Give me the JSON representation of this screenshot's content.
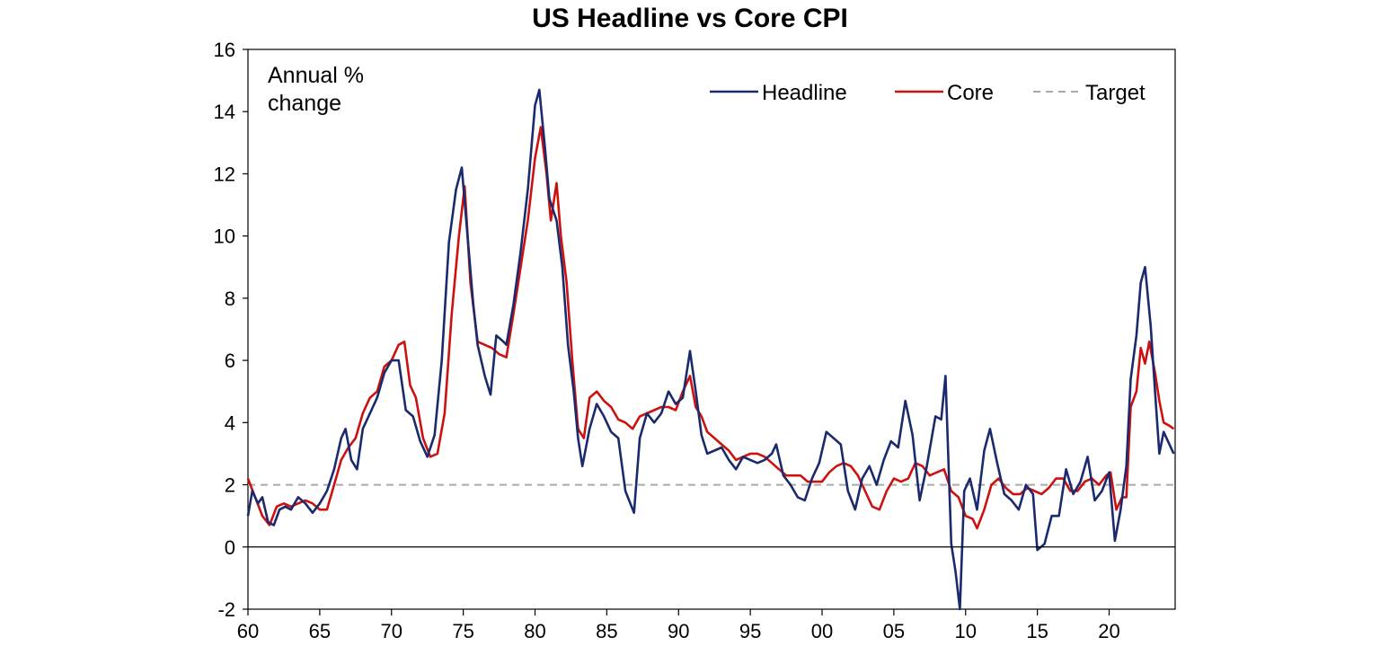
{
  "chart_data": {
    "type": "line",
    "title": "US Headline vs Core CPI",
    "annotation": [
      "Annual %",
      "change"
    ],
    "xlabel": "",
    "ylabel": "",
    "xlim": [
      1960,
      2024.6
    ],
    "ylim": [
      -2,
      16
    ],
    "x_ticks": [
      1960,
      1965,
      1970,
      1975,
      1980,
      1985,
      1990,
      1995,
      2000,
      2005,
      2010,
      2015,
      2020
    ],
    "x_tick_labels": [
      "60",
      "65",
      "70",
      "75",
      "80",
      "85",
      "90",
      "95",
      "00",
      "05",
      "10",
      "15",
      "20"
    ],
    "y_ticks": [
      -2,
      0,
      2,
      4,
      6,
      8,
      10,
      12,
      14,
      16
    ],
    "y_tick_labels": [
      "-2",
      "0",
      "2",
      "4",
      "6",
      "8",
      "10",
      "12",
      "14",
      "16"
    ],
    "grid": false,
    "legend_position": "top-right",
    "series": [
      {
        "name": "Headline",
        "color": "#1a2a6c",
        "style": "solid",
        "points": [
          [
            1960.0,
            1.0
          ],
          [
            1960.3,
            1.8
          ],
          [
            1960.7,
            1.4
          ],
          [
            1961.0,
            1.6
          ],
          [
            1961.4,
            0.8
          ],
          [
            1961.8,
            0.7
          ],
          [
            1962.2,
            1.2
          ],
          [
            1962.6,
            1.3
          ],
          [
            1963.0,
            1.2
          ],
          [
            1963.5,
            1.6
          ],
          [
            1964.0,
            1.4
          ],
          [
            1964.5,
            1.1
          ],
          [
            1965.0,
            1.4
          ],
          [
            1965.5,
            1.8
          ],
          [
            1966.0,
            2.5
          ],
          [
            1966.5,
            3.5
          ],
          [
            1966.8,
            3.8
          ],
          [
            1967.2,
            2.8
          ],
          [
            1967.6,
            2.5
          ],
          [
            1968.0,
            3.8
          ],
          [
            1968.5,
            4.3
          ],
          [
            1969.0,
            4.8
          ],
          [
            1969.5,
            5.6
          ],
          [
            1970.0,
            6.0
          ],
          [
            1970.5,
            6.0
          ],
          [
            1971.0,
            4.4
          ],
          [
            1971.5,
            4.2
          ],
          [
            1972.0,
            3.4
          ],
          [
            1972.5,
            2.9
          ],
          [
            1973.0,
            3.6
          ],
          [
            1973.5,
            6.0
          ],
          [
            1974.0,
            9.8
          ],
          [
            1974.5,
            11.5
          ],
          [
            1974.9,
            12.2
          ],
          [
            1975.3,
            10.0
          ],
          [
            1975.7,
            7.8
          ],
          [
            1976.0,
            6.5
          ],
          [
            1976.5,
            5.5
          ],
          [
            1976.9,
            4.9
          ],
          [
            1977.3,
            6.8
          ],
          [
            1977.8,
            6.6
          ],
          [
            1978.0,
            6.5
          ],
          [
            1978.5,
            7.8
          ],
          [
            1979.0,
            9.5
          ],
          [
            1979.5,
            11.5
          ],
          [
            1980.0,
            14.2
          ],
          [
            1980.3,
            14.7
          ],
          [
            1980.7,
            12.8
          ],
          [
            1981.0,
            11.2
          ],
          [
            1981.5,
            10.5
          ],
          [
            1981.9,
            9.0
          ],
          [
            1982.3,
            6.5
          ],
          [
            1982.7,
            5.0
          ],
          [
            1983.0,
            3.5
          ],
          [
            1983.3,
            2.6
          ],
          [
            1983.8,
            3.8
          ],
          [
            1984.3,
            4.6
          ],
          [
            1984.8,
            4.2
          ],
          [
            1985.3,
            3.7
          ],
          [
            1985.8,
            3.5
          ],
          [
            1986.3,
            1.8
          ],
          [
            1986.9,
            1.1
          ],
          [
            1987.3,
            3.5
          ],
          [
            1987.8,
            4.3
          ],
          [
            1988.3,
            4.0
          ],
          [
            1988.8,
            4.3
          ],
          [
            1989.3,
            5.0
          ],
          [
            1989.8,
            4.6
          ],
          [
            1990.3,
            4.8
          ],
          [
            1990.8,
            6.3
          ],
          [
            1991.2,
            5.0
          ],
          [
            1991.6,
            3.6
          ],
          [
            1992.0,
            3.0
          ],
          [
            1992.5,
            3.1
          ],
          [
            1993.0,
            3.2
          ],
          [
            1993.5,
            2.8
          ],
          [
            1994.0,
            2.5
          ],
          [
            1994.5,
            2.9
          ],
          [
            1995.0,
            2.8
          ],
          [
            1995.5,
            2.7
          ],
          [
            1996.0,
            2.8
          ],
          [
            1996.5,
            3.0
          ],
          [
            1996.8,
            3.3
          ],
          [
            1997.3,
            2.3
          ],
          [
            1997.8,
            2.0
          ],
          [
            1998.3,
            1.6
          ],
          [
            1998.8,
            1.5
          ],
          [
            1999.3,
            2.2
          ],
          [
            1999.8,
            2.7
          ],
          [
            2000.3,
            3.7
          ],
          [
            2000.8,
            3.5
          ],
          [
            2001.3,
            3.3
          ],
          [
            2001.8,
            1.8
          ],
          [
            2002.3,
            1.2
          ],
          [
            2002.8,
            2.2
          ],
          [
            2003.3,
            2.6
          ],
          [
            2003.8,
            2.0
          ],
          [
            2004.3,
            2.8
          ],
          [
            2004.8,
            3.4
          ],
          [
            2005.3,
            3.2
          ],
          [
            2005.8,
            4.7
          ],
          [
            2006.3,
            3.6
          ],
          [
            2006.8,
            1.5
          ],
          [
            2007.3,
            2.6
          ],
          [
            2007.9,
            4.2
          ],
          [
            2008.3,
            4.1
          ],
          [
            2008.6,
            5.5
          ],
          [
            2009.0,
            0.1
          ],
          [
            2009.3,
            -0.8
          ],
          [
            2009.6,
            -2.0
          ],
          [
            2009.9,
            1.8
          ],
          [
            2010.3,
            2.2
          ],
          [
            2010.8,
            1.2
          ],
          [
            2011.3,
            3.1
          ],
          [
            2011.7,
            3.8
          ],
          [
            2012.2,
            2.7
          ],
          [
            2012.7,
            1.7
          ],
          [
            2013.2,
            1.5
          ],
          [
            2013.7,
            1.2
          ],
          [
            2014.2,
            2.0
          ],
          [
            2014.7,
            1.7
          ],
          [
            2015.0,
            -0.1
          ],
          [
            2015.5,
            0.1
          ],
          [
            2016.0,
            1.0
          ],
          [
            2016.5,
            1.0
          ],
          [
            2017.0,
            2.5
          ],
          [
            2017.5,
            1.7
          ],
          [
            2018.0,
            2.1
          ],
          [
            2018.5,
            2.9
          ],
          [
            2019.0,
            1.5
          ],
          [
            2019.5,
            1.8
          ],
          [
            2020.0,
            2.4
          ],
          [
            2020.4,
            0.2
          ],
          [
            2020.8,
            1.2
          ],
          [
            2021.2,
            2.6
          ],
          [
            2021.5,
            5.4
          ],
          [
            2021.9,
            6.8
          ],
          [
            2022.2,
            8.5
          ],
          [
            2022.5,
            9.0
          ],
          [
            2022.9,
            7.1
          ],
          [
            2023.2,
            5.0
          ],
          [
            2023.5,
            3.0
          ],
          [
            2023.8,
            3.7
          ],
          [
            2024.2,
            3.3
          ],
          [
            2024.5,
            3.0
          ]
        ]
      },
      {
        "name": "Core",
        "color": "#cc1111",
        "style": "solid",
        "points": [
          [
            1960.0,
            2.2
          ],
          [
            1960.5,
            1.6
          ],
          [
            1961.0,
            1.0
          ],
          [
            1961.5,
            0.7
          ],
          [
            1962.0,
            1.3
          ],
          [
            1962.5,
            1.4
          ],
          [
            1963.0,
            1.3
          ],
          [
            1963.5,
            1.4
          ],
          [
            1964.0,
            1.5
          ],
          [
            1964.5,
            1.4
          ],
          [
            1965.0,
            1.2
          ],
          [
            1965.5,
            1.2
          ],
          [
            1966.0,
            2.0
          ],
          [
            1966.5,
            2.8
          ],
          [
            1967.0,
            3.2
          ],
          [
            1967.5,
            3.5
          ],
          [
            1968.0,
            4.3
          ],
          [
            1968.5,
            4.8
          ],
          [
            1969.0,
            5.0
          ],
          [
            1969.5,
            5.8
          ],
          [
            1970.0,
            6.0
          ],
          [
            1970.5,
            6.5
          ],
          [
            1970.9,
            6.6
          ],
          [
            1971.3,
            5.2
          ],
          [
            1971.7,
            4.8
          ],
          [
            1972.2,
            3.5
          ],
          [
            1972.7,
            2.9
          ],
          [
            1973.2,
            3.0
          ],
          [
            1973.7,
            4.3
          ],
          [
            1974.2,
            7.5
          ],
          [
            1974.7,
            10.0
          ],
          [
            1975.1,
            11.6
          ],
          [
            1975.5,
            8.5
          ],
          [
            1976.0,
            6.6
          ],
          [
            1976.5,
            6.5
          ],
          [
            1977.0,
            6.4
          ],
          [
            1977.5,
            6.2
          ],
          [
            1978.0,
            6.1
          ],
          [
            1978.5,
            7.5
          ],
          [
            1979.0,
            9.0
          ],
          [
            1979.5,
            10.5
          ],
          [
            1980.0,
            12.5
          ],
          [
            1980.4,
            13.5
          ],
          [
            1980.8,
            12.0
          ],
          [
            1981.1,
            10.5
          ],
          [
            1981.5,
            11.7
          ],
          [
            1981.8,
            10.0
          ],
          [
            1982.2,
            8.5
          ],
          [
            1982.6,
            6.0
          ],
          [
            1983.0,
            3.8
          ],
          [
            1983.4,
            3.5
          ],
          [
            1983.8,
            4.8
          ],
          [
            1984.3,
            5.0
          ],
          [
            1984.8,
            4.7
          ],
          [
            1985.3,
            4.5
          ],
          [
            1985.8,
            4.1
          ],
          [
            1986.3,
            4.0
          ],
          [
            1986.8,
            3.8
          ],
          [
            1987.3,
            4.2
          ],
          [
            1987.8,
            4.3
          ],
          [
            1988.3,
            4.4
          ],
          [
            1988.8,
            4.5
          ],
          [
            1989.3,
            4.5
          ],
          [
            1989.8,
            4.4
          ],
          [
            1990.3,
            5.0
          ],
          [
            1990.8,
            5.5
          ],
          [
            1991.2,
            4.5
          ],
          [
            1991.6,
            4.2
          ],
          [
            1992.0,
            3.7
          ],
          [
            1992.5,
            3.5
          ],
          [
            1993.0,
            3.3
          ],
          [
            1993.5,
            3.1
          ],
          [
            1994.0,
            2.8
          ],
          [
            1994.5,
            2.9
          ],
          [
            1995.0,
            3.0
          ],
          [
            1995.5,
            3.0
          ],
          [
            1996.0,
            2.9
          ],
          [
            1996.5,
            2.7
          ],
          [
            1997.0,
            2.5
          ],
          [
            1997.5,
            2.3
          ],
          [
            1998.0,
            2.3
          ],
          [
            1998.5,
            2.3
          ],
          [
            1999.0,
            2.1
          ],
          [
            1999.5,
            2.1
          ],
          [
            2000.0,
            2.1
          ],
          [
            2000.5,
            2.4
          ],
          [
            2001.0,
            2.6
          ],
          [
            2001.5,
            2.7
          ],
          [
            2002.0,
            2.6
          ],
          [
            2002.5,
            2.3
          ],
          [
            2003.0,
            1.8
          ],
          [
            2003.5,
            1.3
          ],
          [
            2004.0,
            1.2
          ],
          [
            2004.5,
            1.8
          ],
          [
            2005.0,
            2.2
          ],
          [
            2005.5,
            2.1
          ],
          [
            2006.0,
            2.2
          ],
          [
            2006.5,
            2.7
          ],
          [
            2007.0,
            2.6
          ],
          [
            2007.5,
            2.3
          ],
          [
            2008.0,
            2.4
          ],
          [
            2008.5,
            2.5
          ],
          [
            2009.0,
            1.8
          ],
          [
            2009.5,
            1.6
          ],
          [
            2010.0,
            1.0
          ],
          [
            2010.5,
            0.9
          ],
          [
            2010.8,
            0.6
          ],
          [
            2011.3,
            1.2
          ],
          [
            2011.8,
            2.0
          ],
          [
            2012.3,
            2.2
          ],
          [
            2012.8,
            1.9
          ],
          [
            2013.3,
            1.7
          ],
          [
            2013.8,
            1.7
          ],
          [
            2014.3,
            1.9
          ],
          [
            2014.8,
            1.8
          ],
          [
            2015.3,
            1.7
          ],
          [
            2015.8,
            1.9
          ],
          [
            2016.3,
            2.2
          ],
          [
            2016.8,
            2.2
          ],
          [
            2017.3,
            1.8
          ],
          [
            2017.8,
            1.8
          ],
          [
            2018.3,
            2.1
          ],
          [
            2018.8,
            2.2
          ],
          [
            2019.3,
            2.0
          ],
          [
            2019.8,
            2.3
          ],
          [
            2020.1,
            2.4
          ],
          [
            2020.5,
            1.2
          ],
          [
            2020.9,
            1.6
          ],
          [
            2021.2,
            1.6
          ],
          [
            2021.5,
            4.5
          ],
          [
            2021.9,
            5.0
          ],
          [
            2022.2,
            6.4
          ],
          [
            2022.5,
            5.9
          ],
          [
            2022.8,
            6.6
          ],
          [
            2023.2,
            5.6
          ],
          [
            2023.5,
            4.7
          ],
          [
            2023.8,
            4.0
          ],
          [
            2024.2,
            3.9
          ],
          [
            2024.5,
            3.8
          ]
        ]
      },
      {
        "name": "Target",
        "color": "#aaaaaa",
        "style": "dashed",
        "points": [
          [
            1960.0,
            2.0
          ],
          [
            2024.6,
            2.0
          ]
        ]
      }
    ]
  }
}
